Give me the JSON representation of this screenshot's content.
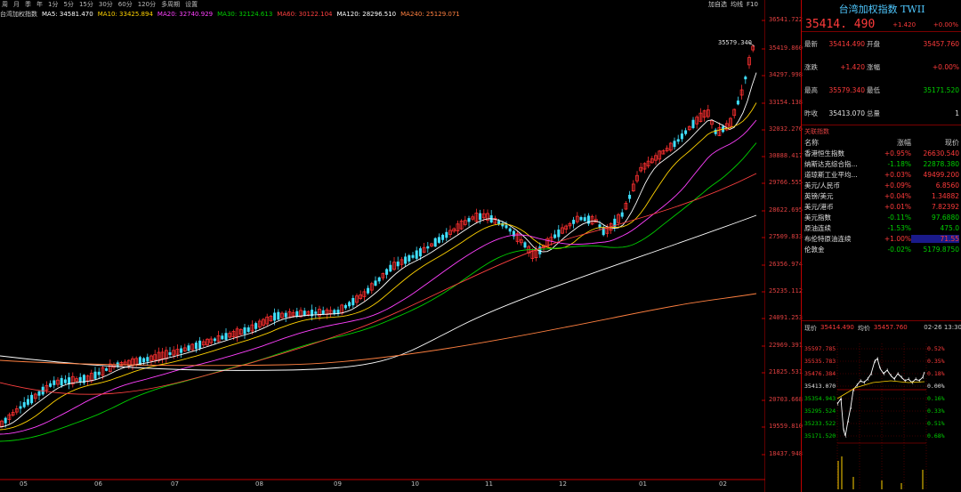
{
  "toolbar": {
    "periods": [
      "周",
      "月",
      "季",
      "年",
      "1分",
      "5分",
      "15分",
      "30分",
      "60分",
      "120分",
      "多周期",
      "设置"
    ],
    "right_buttons": [
      "加自选",
      "均线",
      "F10"
    ]
  },
  "ma_legend": [
    {
      "label": "台湾加权指数",
      "color": "#cfcfcf"
    },
    {
      "label": "MA5: 34581.470",
      "color": "#ffffff"
    },
    {
      "label": "MA10: 33425.894",
      "color": "#ffd200"
    },
    {
      "label": "MA20: 32740.929",
      "color": "#ff40ff"
    },
    {
      "label": "MA30: 32124.613",
      "color": "#00d000"
    },
    {
      "label": "MA60: 30122.104",
      "color": "#ff4040"
    },
    {
      "label": "MA120: 28296.510",
      "color": "#ffffff"
    },
    {
      "label": "MA240: 25129.071",
      "color": "#ff8040"
    }
  ],
  "y_axis_labels": [
    "36541.722",
    "35419.860",
    "34297.998",
    "33154.138",
    "32032.276",
    "30888.417",
    "29766.555",
    "28622.695",
    "27509.833",
    "26356.974",
    "25235.112",
    "24091.253",
    "22969.391",
    "21825.531",
    "20703.668",
    "19559.810",
    "18437.948"
  ],
  "x_axis_labels": [
    "05",
    "06",
    "07",
    "08",
    "09",
    "10",
    "11",
    "12",
    "01",
    "02"
  ],
  "peak_label": "35579.340",
  "chart_data": {
    "type": "candlestick",
    "x_months": [
      "05",
      "06",
      "07",
      "08",
      "09",
      "10",
      "11",
      "12",
      "01",
      "02"
    ],
    "ylim": [
      18437.948,
      36541.722
    ],
    "last_high": 35579.34,
    "ma_values": {
      "MA5": 34581.47,
      "MA10": 33425.894,
      "MA20": 32740.929,
      "MA30": 32124.613,
      "MA60": 30122.104,
      "MA120": 28296.51,
      "MA240": 25129.071
    }
  },
  "panel": {
    "title": "台湾加权指数 TWII",
    "price": "35414. 490",
    "change": "+1.420",
    "change_pct": "+0.00%",
    "rows": [
      {
        "l1": "最新",
        "v1": "35414.490",
        "l2": "开盘",
        "v2": "35457.760"
      },
      {
        "l1": "涨跌",
        "v1": "+1.420",
        "l2": "涨幅",
        "v2": "+0.00%"
      },
      {
        "l1": "最高",
        "v1": "35579.340",
        "l2": "最低",
        "v2": "35171.520"
      },
      {
        "l1": "昨收",
        "v1": "35413.070",
        "l2": "总量",
        "v2": "1"
      }
    ],
    "related_title": "关联指数",
    "related_head": [
      "名称",
      "涨幅",
      "现价"
    ],
    "related": [
      {
        "name": "香港恒生指数",
        "pct": "+0.95%",
        "price": "26630.540",
        "up": true
      },
      {
        "name": "纳斯达克综合指...",
        "pct": "-1.18%",
        "price": "22878.380",
        "up": false
      },
      {
        "name": "道琼斯工业平均...",
        "pct": "+0.03%",
        "price": "49499.200",
        "up": true
      },
      {
        "name": "美元/人民币",
        "pct": "+0.09%",
        "price": "6.8560",
        "up": true
      },
      {
        "name": "英镑/美元",
        "pct": "+0.04%",
        "price": "1.34882",
        "up": true
      },
      {
        "name": "美元/港币",
        "pct": "+0.01%",
        "price": "7.82392",
        "up": true
      },
      {
        "name": "美元指数",
        "pct": "-0.11%",
        "price": "97.6880",
        "up": false
      },
      {
        "name": "原油连续",
        "pct": "-1.53%",
        "price": "475.0",
        "up": false
      },
      {
        "name": "布伦特原油连续",
        "pct": "+1.00%",
        "price": "71.55",
        "up": true
      },
      {
        "name": "伦敦金",
        "pct": "-0.02%",
        "price": "5179.8750",
        "up": false
      }
    ],
    "intraday": {
      "now_label": "现价",
      "now": "35414.490",
      "avg_label": "均价",
      "avg": "35457.760",
      "time": "02-26 13:30",
      "left_labels": [
        "35597.785",
        "35535.783",
        "35476.384",
        "35413.070",
        "35354.943",
        "35295.524",
        "35233.522",
        "35171.520"
      ],
      "right_labels": [
        "0.52%",
        "0.35%",
        "0.18%",
        "0.00%",
        "0.16%",
        "0.33%",
        "0.51%",
        "0.68%"
      ]
    }
  }
}
